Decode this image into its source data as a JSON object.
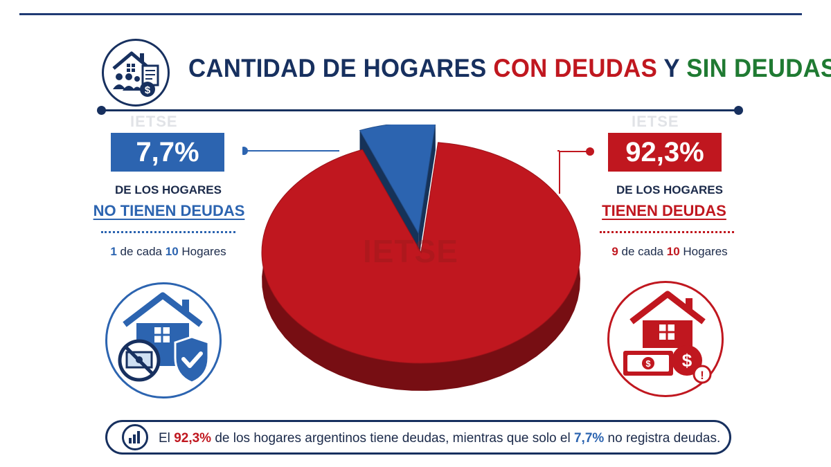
{
  "title": {
    "part1": "CANTIDAD DE HOGARES ",
    "part2": "CON DEUDAS",
    "part3": " Y ",
    "part4": "SIN DEUDAS"
  },
  "watermark": "IETSE",
  "left": {
    "pct": "7,7%",
    "line1": "DE LOS HOGARES",
    "status": "NO TIENEN DEUDAS",
    "cada_n": "1",
    "cada_mid": " de cada ",
    "cada_d": "10",
    "cada_end": " Hogares"
  },
  "right": {
    "pct": "92,3%",
    "line1": "DE LOS HOGARES",
    "status": "TIENEN DEUDAS",
    "cada_n": "9",
    "cada_mid": " de cada ",
    "cada_d": "10",
    "cada_end": " Hogares"
  },
  "footer": {
    "a": "El ",
    "b": "92,3%",
    "c": " de los hogares argentinos tiene deudas, mientras que solo el ",
    "d": "7,7%",
    "e": " no registra deudas."
  },
  "icons": {
    "header": "house-family-document-icon",
    "left": "house-shield-no-money-icon",
    "right": "house-money-alert-icon",
    "footer": "bar-chart-icon"
  },
  "colors": {
    "navy": "#17305f",
    "red": "#c0171f",
    "blue": "#2c64b0",
    "green": "#1f7a32"
  },
  "chart_data": {
    "type": "pie",
    "title": "CANTIDAD DE HOGARES CON DEUDAS Y SIN DEUDAS",
    "categories": [
      "NO TIENEN DEUDAS",
      "TIENEN DEUDAS"
    ],
    "values": [
      7.7,
      92.3
    ],
    "colors": [
      "#2c64b0",
      "#c0171f"
    ],
    "labels": [
      "7,7%",
      "92,3%"
    ],
    "exploded_slice": "NO TIENEN DEUDAS"
  }
}
